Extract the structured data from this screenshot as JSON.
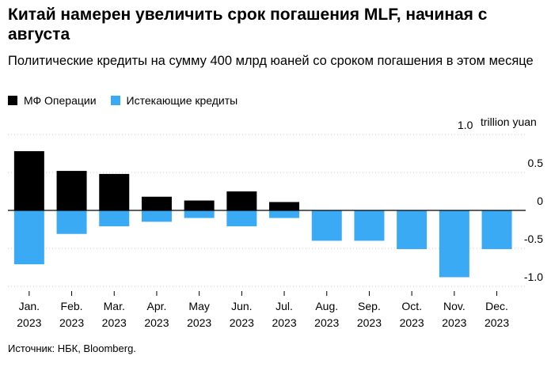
{
  "header": {
    "title": "Китай намерен увеличить срок погашения MLF, начиная с августа",
    "subtitle": "Политические кредиты на сумму 400 млрд юаней со сроком погашения в этом месяце"
  },
  "source": "Источник: НБК, Bloomberg.",
  "colors": {
    "operations": "#000000",
    "expiring": "#3aaaf5",
    "grid": "#cccccc"
  },
  "chart_data": {
    "type": "bar",
    "unit_label": "trillion yuan",
    "y_ticks": [
      {
        "value": 1.0,
        "label": "1.0"
      },
      {
        "value": 0.5,
        "label": "0.5"
      },
      {
        "value": 0,
        "label": "0"
      },
      {
        "value": -0.5,
        "label": "-0.5"
      },
      {
        "value": -1.0,
        "label": "-1.0"
      }
    ],
    "ylim": [
      -1.0,
      1.0
    ],
    "categories": [
      {
        "month": "Jan.",
        "year": "2023"
      },
      {
        "month": "Feb.",
        "year": "2023"
      },
      {
        "month": "Mar.",
        "year": "2023"
      },
      {
        "month": "Apr.",
        "year": "2023"
      },
      {
        "month": "May",
        "year": "2023"
      },
      {
        "month": "Jun.",
        "year": "2023"
      },
      {
        "month": "Jul.",
        "year": "2023"
      },
      {
        "month": "Aug.",
        "year": "2023"
      },
      {
        "month": "Sep.",
        "year": "2023"
      },
      {
        "month": "Oct.",
        "year": "2023"
      },
      {
        "month": "Nov.",
        "year": "2023"
      },
      {
        "month": "Dec.",
        "year": "2023"
      }
    ],
    "series": [
      {
        "name": "МФ Операции",
        "key": "operations",
        "values": [
          0.78,
          0.52,
          0.48,
          0.18,
          0.13,
          0.25,
          0.11,
          null,
          null,
          null,
          null,
          null
        ]
      },
      {
        "name": "Истекающие кредиты",
        "key": "expiring",
        "values": [
          -0.71,
          -0.31,
          -0.21,
          -0.15,
          -0.1,
          -0.21,
          -0.1,
          -0.4,
          -0.4,
          -0.51,
          -0.88,
          -0.51
        ]
      }
    ]
  }
}
